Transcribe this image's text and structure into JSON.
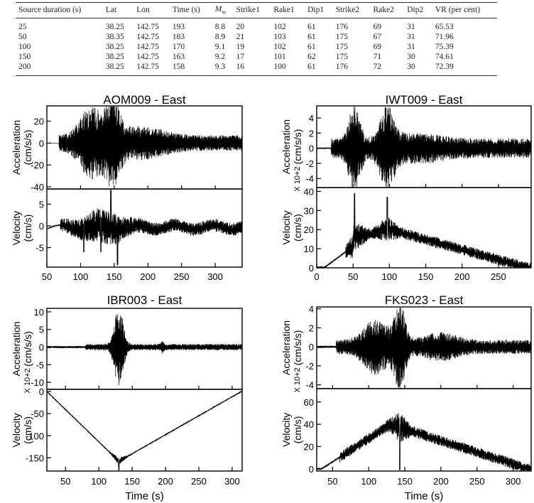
{
  "table": {
    "headers": [
      "Source duration (s)",
      "Lat",
      "Lon",
      "Time (s)",
      "M",
      "Strike1",
      "Rake1",
      "Dip1",
      "Strike2",
      "Rake2",
      "Dip2",
      "VR (per cent)"
    ],
    "mw_subscript": "w",
    "rows": [
      [
        "25",
        "38.25",
        "142.75",
        "193",
        "8.8",
        "20",
        "102",
        "61",
        "176",
        "69",
        "31",
        "65.53"
      ],
      [
        "50",
        "38.35",
        "142.75",
        "183",
        "8.9",
        "21",
        "103",
        "61",
        "175",
        "67",
        "31",
        "71.96"
      ],
      [
        "100",
        "38.25",
        "142.75",
        "170",
        "9.1",
        "19",
        "102",
        "61",
        "175",
        "69",
        "31",
        "75.39"
      ],
      [
        "150",
        "38.25",
        "142.75",
        "163",
        "9.2",
        "17",
        "101",
        "62",
        "175",
        "71",
        "30",
        "74.61"
      ],
      [
        "200",
        "38.25",
        "142.75",
        "158",
        "9.3",
        "16",
        "100",
        "61",
        "176",
        "72",
        "30",
        "72.39"
      ]
    ]
  },
  "chart_data": [
    {
      "type": "line",
      "title": "AOM009 - East",
      "xlabel": "",
      "xlim": [
        50,
        340
      ],
      "xticks": [
        50,
        100,
        150,
        200,
        250,
        300
      ],
      "acceleration": {
        "ylabel": "Acceleration (cm/s/s)",
        "ylim": [
          -42,
          34
        ],
        "yticks": [
          -40,
          -20,
          0,
          20
        ],
        "scale_note": ""
      },
      "velocity": {
        "ylabel": "Velocity (cm/s)",
        "ylim": [
          -9.5,
          8.5
        ],
        "yticks": [
          -5,
          0,
          5
        ]
      }
    },
    {
      "type": "line",
      "title": "IWT009 - East",
      "xlabel": "",
      "xlim": [
        0,
        295
      ],
      "xticks": [
        0,
        50,
        100,
        150,
        200,
        250
      ],
      "acceleration": {
        "ylabel": "Acceleration (cm/s/s)",
        "ylim": [
          -5.2,
          5.6
        ],
        "yticks": [
          -4,
          -2,
          0,
          2,
          4
        ],
        "scale_note": "X 10+2"
      },
      "velocity": {
        "ylabel": "Velocity (cm/s)",
        "ylim": [
          0,
          42
        ],
        "yticks": [
          0,
          10,
          20,
          30,
          40
        ]
      }
    },
    {
      "type": "line",
      "title": "IBR003 - East",
      "xlabel": "Time (s)",
      "xlim": [
        22,
        315
      ],
      "xticks": [
        50,
        100,
        150,
        200,
        250,
        300
      ],
      "acceleration": {
        "ylabel": "Acceleration (cm/s/s)",
        "ylim": [
          -12,
          11
        ],
        "yticks": [
          -10,
          -5,
          0,
          5,
          10
        ],
        "scale_note": "X 10+2"
      },
      "velocity": {
        "ylabel": "Velocity (cm/s)",
        "ylim": [
          -180,
          5
        ],
        "yticks": [
          -150,
          -100,
          -50,
          0
        ]
      }
    },
    {
      "type": "line",
      "title": "FKS023 - East",
      "xlabel": "Time (s)",
      "xlim": [
        28,
        325
      ],
      "xticks": [
        50,
        100,
        150,
        200,
        250,
        300
      ],
      "acceleration": {
        "ylabel": "Acceleration (cm/s/s)",
        "ylim": [
          -4.4,
          4.2
        ],
        "yticks": [
          -4,
          -2,
          0,
          2,
          4
        ],
        "scale_note": "X 10+2"
      },
      "velocity": {
        "ylabel": "Velocity (cm/s)",
        "ylim": [
          -2,
          72
        ],
        "yticks": [
          0,
          20,
          40,
          60
        ]
      }
    }
  ]
}
